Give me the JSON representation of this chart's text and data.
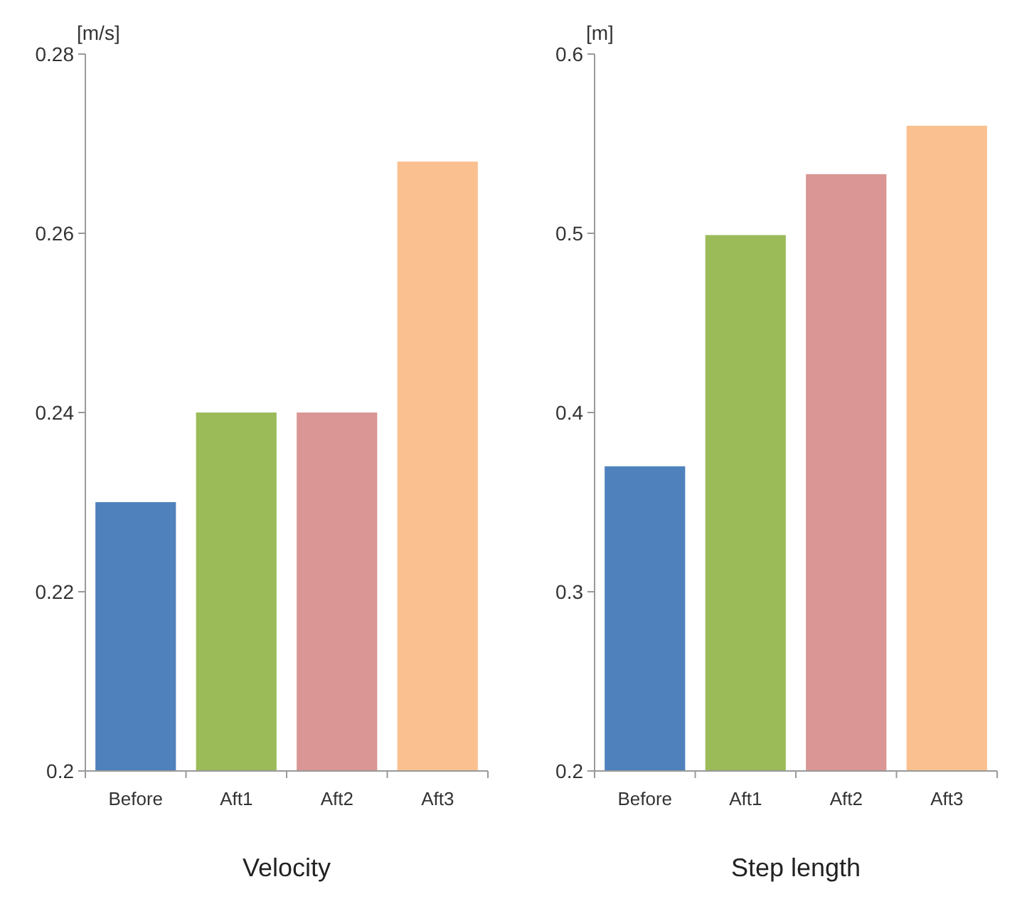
{
  "chart_data": [
    {
      "type": "bar",
      "title": "Velocity",
      "ylabel": "[m/s]",
      "categories": [
        "Before",
        "Aft1",
        "Aft2",
        "Aft3"
      ],
      "values": [
        0.23,
        0.24,
        0.24,
        0.268
      ],
      "colors": [
        "#4f81bd",
        "#9bbb59",
        "#d99694",
        "#fac090"
      ],
      "ylim": [
        0.2,
        0.28
      ],
      "yticks": [
        {
          "value": 0.2,
          "label": "0.2"
        },
        0.22,
        0.24,
        0.26,
        0.28
      ],
      "grid": false
    },
    {
      "type": "bar",
      "title": "Step length",
      "ylabel": "[m]",
      "categories": [
        "Before",
        "Aft1",
        "Aft2",
        "Aft3"
      ],
      "values": [
        0.37,
        0.499,
        0.533,
        0.56
      ],
      "colors": [
        "#4f81bd",
        "#9bbb59",
        "#d99694",
        "#fac090"
      ],
      "ylim": [
        0.2,
        0.6
      ],
      "yticks": [
        0.2,
        0.3,
        0.4,
        0.5,
        0.6
      ],
      "grid": false
    }
  ]
}
